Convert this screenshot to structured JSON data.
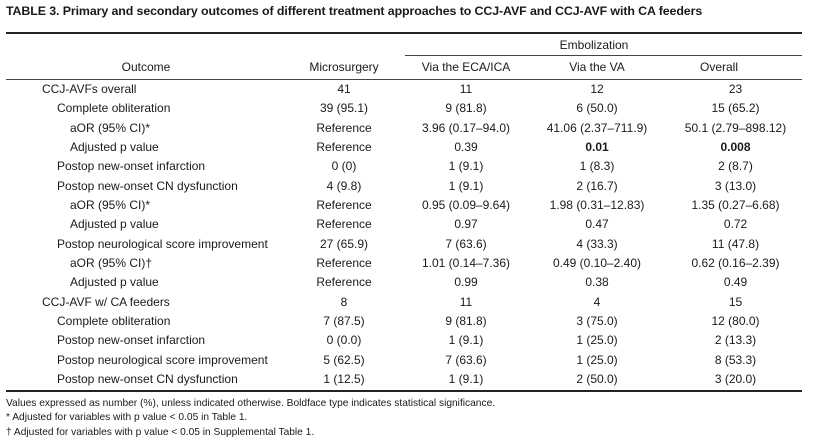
{
  "table": {
    "title": "TABLE 3. Primary and secondary outcomes of different treatment approaches to CCJ-AVF and CCJ-AVF with CA feeders",
    "group_header": "Embolization",
    "columns": [
      "Outcome",
      "Microsurgery",
      "Via the ECA/ICA",
      "Via the VA",
      "Overall"
    ],
    "rows": [
      {
        "label": "CCJ-AVFs overall",
        "indent": 0,
        "cells": [
          "41",
          "11",
          "12",
          "23"
        ],
        "bold": [
          false,
          false,
          false,
          false
        ]
      },
      {
        "label": "Complete obliteration",
        "indent": 1,
        "cells": [
          "39 (95.1)",
          "9 (81.8)",
          "6 (50.0)",
          "15 (65.2)"
        ],
        "bold": [
          false,
          false,
          false,
          false
        ]
      },
      {
        "label": "aOR (95% CI)*",
        "indent": 2,
        "cells": [
          "Reference",
          "3.96 (0.17–94.0)",
          "41.06 (2.37–711.9)",
          "50.1 (2.79–898.12)"
        ],
        "bold": [
          false,
          false,
          false,
          false
        ]
      },
      {
        "label": "Adjusted p value",
        "indent": 2,
        "cells": [
          "Reference",
          "0.39",
          "0.01",
          "0.008"
        ],
        "bold": [
          false,
          false,
          true,
          true
        ]
      },
      {
        "label": "Postop new-onset infarction",
        "indent": 1,
        "cells": [
          "0 (0)",
          "1 (9.1)",
          "1 (8.3)",
          "2 (8.7)"
        ],
        "bold": [
          false,
          false,
          false,
          false
        ]
      },
      {
        "label": "Postop new-onset CN dysfunction",
        "indent": 1,
        "cells": [
          "4 (9.8)",
          "1 (9.1)",
          "2 (16.7)",
          "3 (13.0)"
        ],
        "bold": [
          false,
          false,
          false,
          false
        ]
      },
      {
        "label": "aOR (95% CI)*",
        "indent": 2,
        "cells": [
          "Reference",
          "0.95 (0.09–9.64)",
          "1.98 (0.31–12.83)",
          "1.35 (0.27–6.68)"
        ],
        "bold": [
          false,
          false,
          false,
          false
        ]
      },
      {
        "label": "Adjusted p value",
        "indent": 2,
        "cells": [
          "Reference",
          "0.97",
          "0.47",
          "0.72"
        ],
        "bold": [
          false,
          false,
          false,
          false
        ]
      },
      {
        "label": "Postop neurological score improvement",
        "indent": 1,
        "cells": [
          "27 (65.9)",
          "7 (63.6)",
          "4 (33.3)",
          "11 (47.8)"
        ],
        "bold": [
          false,
          false,
          false,
          false
        ]
      },
      {
        "label": "aOR (95% CI)†",
        "indent": 2,
        "cells": [
          "Reference",
          "1.01 (0.14–7.36)",
          "0.49 (0.10–2.40)",
          "0.62 (0.16–2.39)"
        ],
        "bold": [
          false,
          false,
          false,
          false
        ]
      },
      {
        "label": "Adjusted p value",
        "indent": 2,
        "cells": [
          "Reference",
          "0.99",
          "0.38",
          "0.49"
        ],
        "bold": [
          false,
          false,
          false,
          false
        ]
      },
      {
        "label": "CCJ-AVF w/ CA feeders",
        "indent": 0,
        "cells": [
          "8",
          "11",
          "4",
          "15"
        ],
        "bold": [
          false,
          false,
          false,
          false
        ]
      },
      {
        "label": "Complete obliteration",
        "indent": 1,
        "cells": [
          "7 (87.5)",
          "9 (81.8)",
          "3 (75.0)",
          "12 (80.0)"
        ],
        "bold": [
          false,
          false,
          false,
          false
        ]
      },
      {
        "label": "Postop new-onset infarction",
        "indent": 1,
        "cells": [
          "0 (0.0)",
          "1 (9.1)",
          "1 (25.0)",
          "2 (13.3)"
        ],
        "bold": [
          false,
          false,
          false,
          false
        ]
      },
      {
        "label": "Postop neurological score improvement",
        "indent": 1,
        "cells": [
          "5 (62.5)",
          "7 (63.6)",
          "1 (25.0)",
          "8 (53.3)"
        ],
        "bold": [
          false,
          false,
          false,
          false
        ]
      },
      {
        "label": "Postop new-onset CN dysfunction",
        "indent": 1,
        "cells": [
          "1 (12.5)",
          "1 (9.1)",
          "2 (50.0)",
          "3 (20.0)"
        ],
        "bold": [
          false,
          false,
          false,
          false
        ]
      }
    ],
    "footnotes": [
      "Values expressed as number (%), unless indicated otherwise. Boldface type indicates statistical significance.",
      "* Adjusted for variables with p value < 0.05 in Table 1.",
      "† Adjusted for variables with p value < 0.05 in Supplemental Table 1."
    ]
  }
}
